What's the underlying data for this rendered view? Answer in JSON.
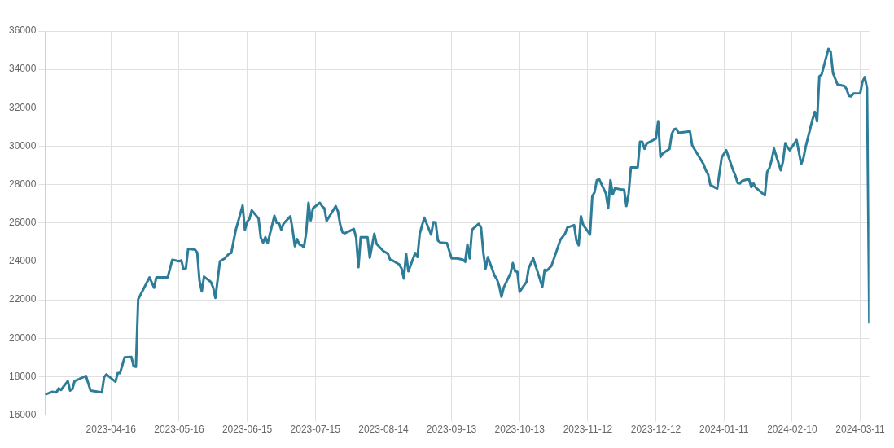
{
  "chart_data": {
    "type": "line",
    "xlim": [
      "2023-03-18",
      "2024-03-15"
    ],
    "xticks": [
      "2023-04-16",
      "2023-05-16",
      "2023-06-15",
      "2023-07-15",
      "2023-08-14",
      "2023-09-13",
      "2023-10-13",
      "2023-11-12",
      "2023-12-12",
      "2024-01-11",
      "2024-02-10",
      "2024-03-11"
    ],
    "ylim": [
      16000,
      36000
    ],
    "yticks": [
      16000,
      18000,
      20000,
      22000,
      24000,
      26000,
      28000,
      30000,
      32000,
      34000,
      36000
    ],
    "grid": true,
    "x": [
      "2023-03-18",
      "2023-03-21",
      "2023-03-23",
      "2023-03-24",
      "2023-03-25",
      "2023-03-28",
      "2023-03-29",
      "2023-03-30",
      "2023-03-31",
      "2023-04-05",
      "2023-04-07",
      "2023-04-12",
      "2023-04-13",
      "2023-04-14",
      "2023-04-18",
      "2023-04-19",
      "2023-04-20",
      "2023-04-22",
      "2023-04-25",
      "2023-04-26",
      "2023-04-27",
      "2023-04-28",
      "2023-05-03",
      "2023-05-05",
      "2023-05-06",
      "2023-05-11",
      "2023-05-13",
      "2023-05-16",
      "2023-05-17",
      "2023-05-18",
      "2023-05-19",
      "2023-05-20",
      "2023-05-23",
      "2023-05-24",
      "2023-05-25",
      "2023-05-26",
      "2023-05-27",
      "2023-05-30",
      "2023-05-31",
      "2023-06-01",
      "2023-06-03",
      "2023-06-05",
      "2023-06-07",
      "2023-06-08",
      "2023-06-10",
      "2023-06-13",
      "2023-06-14",
      "2023-06-15",
      "2023-06-16",
      "2023-06-17",
      "2023-06-20",
      "2023-06-21",
      "2023-06-22",
      "2023-06-23",
      "2023-06-24",
      "2023-06-27",
      "2023-06-28",
      "2023-06-29",
      "2023-06-30",
      "2023-07-01",
      "2023-07-04",
      "2023-07-05",
      "2023-07-06",
      "2023-07-07",
      "2023-07-08",
      "2023-07-09",
      "2023-07-10",
      "2023-07-11",
      "2023-07-12",
      "2023-07-13",
      "2023-07-14",
      "2023-07-17",
      "2023-07-18",
      "2023-07-19",
      "2023-07-20",
      "2023-07-24",
      "2023-07-25",
      "2023-07-26",
      "2023-07-27",
      "2023-07-28",
      "2023-08-01",
      "2023-08-02",
      "2023-08-03",
      "2023-08-04",
      "2023-08-07",
      "2023-08-08",
      "2023-08-10",
      "2023-08-11",
      "2023-08-14",
      "2023-08-16",
      "2023-08-17",
      "2023-08-18",
      "2023-08-21",
      "2023-08-22",
      "2023-08-23",
      "2023-08-24",
      "2023-08-25",
      "2023-08-28",
      "2023-08-29",
      "2023-08-30",
      "2023-09-01",
      "2023-09-04",
      "2023-09-05",
      "2023-09-06",
      "2023-09-07",
      "2023-09-08",
      "2023-09-11",
      "2023-09-13",
      "2023-09-15",
      "2023-09-18",
      "2023-09-19",
      "2023-09-20",
      "2023-09-21",
      "2023-09-22",
      "2023-09-25",
      "2023-09-26",
      "2023-09-27",
      "2023-09-28",
      "2023-09-29",
      "2023-10-02",
      "2023-10-03",
      "2023-10-04",
      "2023-10-05",
      "2023-10-06",
      "2023-10-09",
      "2023-10-10",
      "2023-10-11",
      "2023-10-12",
      "2023-10-13",
      "2023-10-16",
      "2023-10-17",
      "2023-10-19",
      "2023-10-21",
      "2023-10-23",
      "2023-10-24",
      "2023-10-25",
      "2023-10-27",
      "2023-10-31",
      "2023-11-02",
      "2023-11-03",
      "2023-11-06",
      "2023-11-07",
      "2023-11-08",
      "2023-11-09",
      "2023-11-10",
      "2023-11-13",
      "2023-11-14",
      "2023-11-15",
      "2023-11-16",
      "2023-11-17",
      "2023-11-20",
      "2023-11-21",
      "2023-11-22",
      "2023-11-23",
      "2023-11-24",
      "2023-11-27",
      "2023-11-28",
      "2023-11-29",
      "2023-11-30",
      "2023-12-01",
      "2023-12-04",
      "2023-12-05",
      "2023-12-06",
      "2023-12-07",
      "2023-12-08",
      "2023-12-12",
      "2023-12-13",
      "2023-12-14",
      "2023-12-15",
      "2023-12-18",
      "2023-12-19",
      "2023-12-20",
      "2023-12-21",
      "2023-12-22",
      "2023-12-27",
      "2023-12-28",
      "2024-01-02",
      "2024-01-03",
      "2024-01-04",
      "2024-01-05",
      "2024-01-08",
      "2024-01-10",
      "2024-01-12",
      "2024-01-15",
      "2024-01-16",
      "2024-01-17",
      "2024-01-18",
      "2024-01-19",
      "2024-01-22",
      "2024-01-23",
      "2024-01-24",
      "2024-01-25",
      "2024-01-29",
      "2024-01-30",
      "2024-01-31",
      "2024-02-01",
      "2024-02-02",
      "2024-02-05",
      "2024-02-06",
      "2024-02-07",
      "2024-02-08",
      "2024-02-09",
      "2024-02-12",
      "2024-02-14",
      "2024-02-15",
      "2024-02-16",
      "2024-02-19",
      "2024-02-20",
      "2024-02-21",
      "2024-02-22",
      "2024-02-23",
      "2024-02-26",
      "2024-02-27",
      "2024-02-28",
      "2024-03-01",
      "2024-03-04",
      "2024-03-05",
      "2024-03-06",
      "2024-03-07",
      "2024-03-08",
      "2024-03-11",
      "2024-03-12",
      "2024-03-13",
      "2024-03-14",
      "2024-03-15"
    ],
    "series": [
      {
        "color": "#2e7d98",
        "values": [
          17070,
          17210,
          17180,
          17390,
          17310,
          17770,
          17280,
          17350,
          17770,
          18040,
          17280,
          17180,
          17980,
          18120,
          17740,
          18190,
          18190,
          19000,
          19030,
          18540,
          18510,
          22030,
          23170,
          22630,
          23170,
          23170,
          24080,
          24010,
          24050,
          23600,
          23630,
          24650,
          24610,
          24470,
          23000,
          22440,
          23210,
          22930,
          22650,
          22100,
          24010,
          24150,
          24400,
          24440,
          25650,
          26910,
          25650,
          26070,
          26210,
          26660,
          26240,
          25230,
          24980,
          25260,
          24950,
          26380,
          26000,
          26000,
          25650,
          25960,
          26350,
          25650,
          24790,
          25160,
          24880,
          24840,
          24740,
          25510,
          27050,
          26140,
          26770,
          27050,
          26870,
          26770,
          26110,
          26880,
          26600,
          25900,
          25510,
          25470,
          25690,
          25230,
          23700,
          25260,
          25260,
          24190,
          25440,
          24910,
          24540,
          24400,
          24080,
          24050,
          23840,
          23630,
          23110,
          24400,
          23490,
          24440,
          24230,
          25440,
          26280,
          25400,
          26040,
          26030,
          25090,
          24990,
          24950,
          24160,
          24170,
          24090,
          23980,
          24880,
          24160,
          25650,
          25960,
          25760,
          24470,
          23630,
          24220,
          23250,
          23070,
          22720,
          22160,
          22650,
          23390,
          23910,
          23490,
          23460,
          22420,
          22930,
          23660,
          24150,
          23420,
          22680,
          23560,
          23520,
          23770,
          25140,
          25440,
          25760,
          25890,
          25090,
          24840,
          26350,
          25900,
          25400,
          27390,
          27600,
          28230,
          28290,
          27530,
          26770,
          28230,
          27490,
          27810,
          27740,
          27740,
          26880,
          27530,
          28900,
          28900,
          30230,
          30230,
          29860,
          30140,
          30390,
          31300,
          29440,
          29620,
          29860,
          30640,
          30880,
          30910,
          30700,
          30770,
          30040,
          29070,
          28750,
          28540,
          27980,
          27790,
          29420,
          29790,
          28750,
          28470,
          28090,
          28060,
          28200,
          28290,
          27880,
          28060,
          27840,
          27440,
          28650,
          28860,
          29280,
          29880,
          28750,
          29210,
          30160,
          29930,
          29790,
          30320,
          29070,
          29390,
          29980,
          31400,
          31790,
          31300,
          33640,
          33740,
          35070,
          34900,
          33810,
          33210,
          33140,
          32970,
          32620,
          32600,
          32740,
          32760,
          33360,
          33600,
          33020,
          20770
        ]
      }
    ]
  }
}
